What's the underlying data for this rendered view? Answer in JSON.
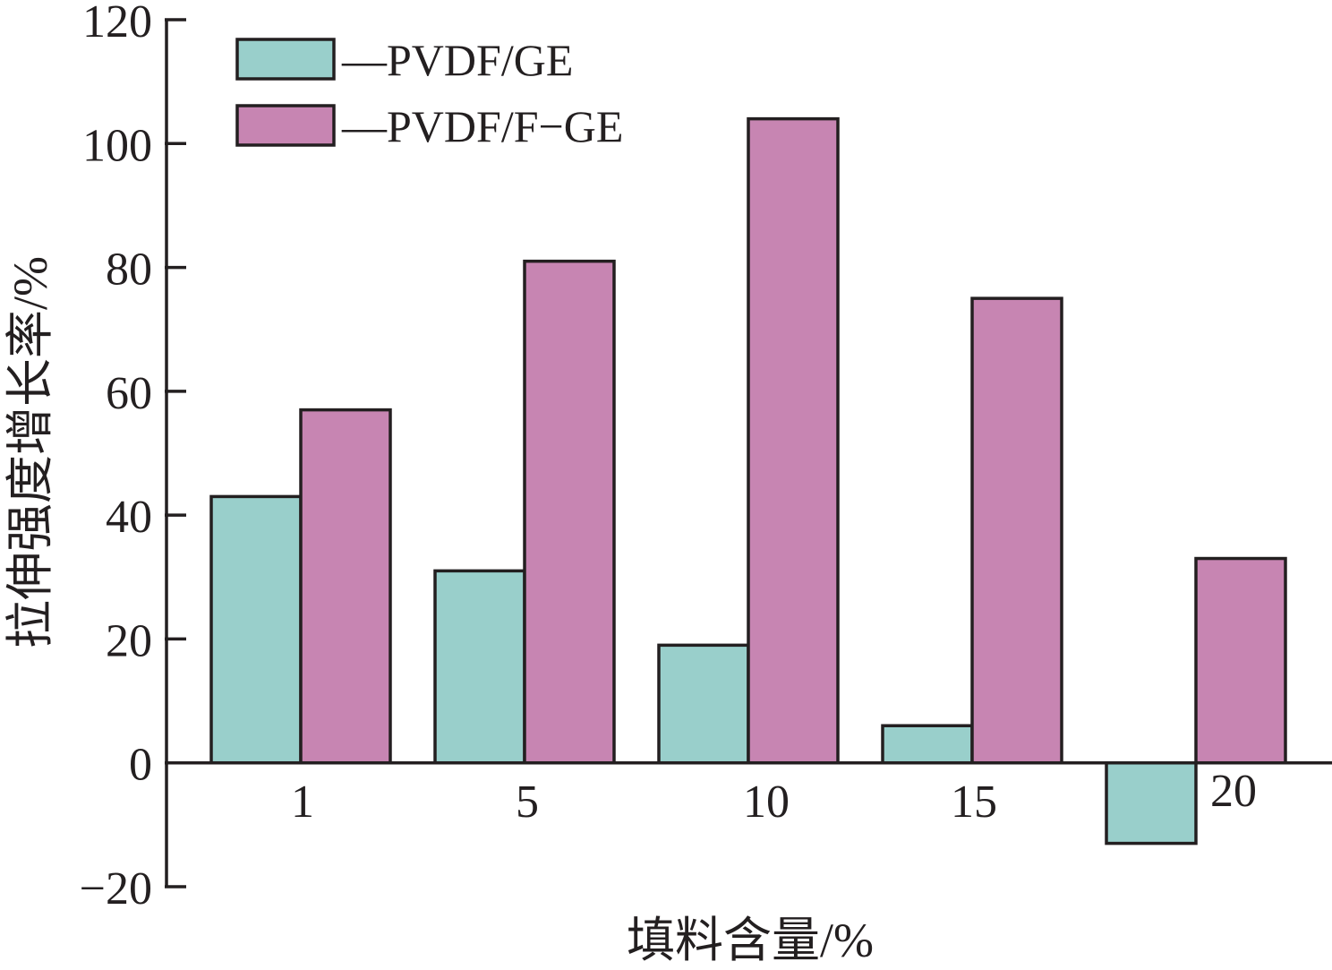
{
  "chart_data": {
    "type": "bar",
    "categories": [
      "1",
      "5",
      "10",
      "15",
      "20"
    ],
    "series": [
      {
        "name": "—PVDF/GE",
        "color": "#99cfcb",
        "values": [
          43,
          31,
          19,
          6,
          -13
        ]
      },
      {
        "name": "—PVDF/F−GE",
        "color": "#c785b2",
        "values": [
          57,
          81,
          104,
          75,
          33
        ]
      }
    ],
    "xlabel": "填料含量/%",
    "ylabel": "拉伸强度增长率/%",
    "ylim": [
      -20,
      120
    ],
    "yticks": [
      "120",
      "100",
      "80",
      "60",
      "40",
      "20",
      "0",
      "−20"
    ],
    "ytick_values": [
      120,
      100,
      80,
      60,
      40,
      20,
      0,
      -20
    ],
    "legend_position": "top-left",
    "grid": false
  }
}
